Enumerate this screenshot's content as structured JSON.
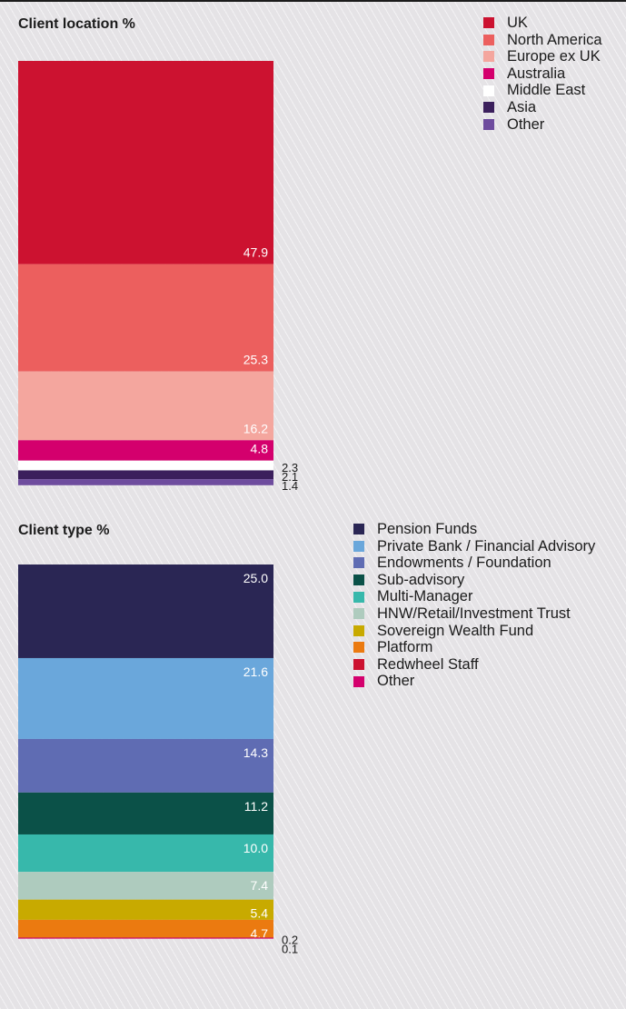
{
  "chart_data": [
    {
      "type": "bar",
      "title": "Client location %",
      "categories": [
        "UK",
        "North America",
        "Europe ex UK",
        "Australia",
        "Middle East",
        "Asia",
        "Other"
      ],
      "values": [
        47.9,
        25.3,
        16.2,
        4.8,
        2.3,
        2.1,
        1.4
      ],
      "labels": [
        "47.9",
        "25.3",
        "16.2",
        "4.8",
        "2.3",
        "2.1",
        "1.4"
      ],
      "colors": [
        "#cc1230",
        "#ec5f5e",
        "#f4a69e",
        "#d4006d",
        "#ffffff",
        "#3b1f5c",
        "#6e4c9e"
      ],
      "stacked": true,
      "legend": "top-right"
    },
    {
      "type": "bar",
      "title": "Client type %",
      "categories": [
        "Pension Funds",
        "Private Bank / Financial Advisory",
        "Endowments / Foundation",
        "Sub-advisory",
        "Multi-Manager",
        "HNW/Retail/Investment Trust",
        "Sovereign Wealth Fund",
        "Platform",
        "Redwheel Staff",
        "Other"
      ],
      "values": [
        25.0,
        21.6,
        14.3,
        11.2,
        10.0,
        7.4,
        5.4,
        4.7,
        0.2,
        0.1
      ],
      "labels": [
        "25.0",
        "21.6",
        "14.3",
        "11.2",
        "10.0",
        "7.4",
        "5.4",
        "4.7",
        "0.2",
        "0.1"
      ],
      "colors": [
        "#2a2654",
        "#6aa7db",
        "#5f6cb3",
        "#0b5148",
        "#37b8ab",
        "#aecbbe",
        "#c8aa00",
        "#eb7a10",
        "#cc1230",
        "#d4006d"
      ],
      "stacked": true,
      "legend": "top-right"
    }
  ]
}
